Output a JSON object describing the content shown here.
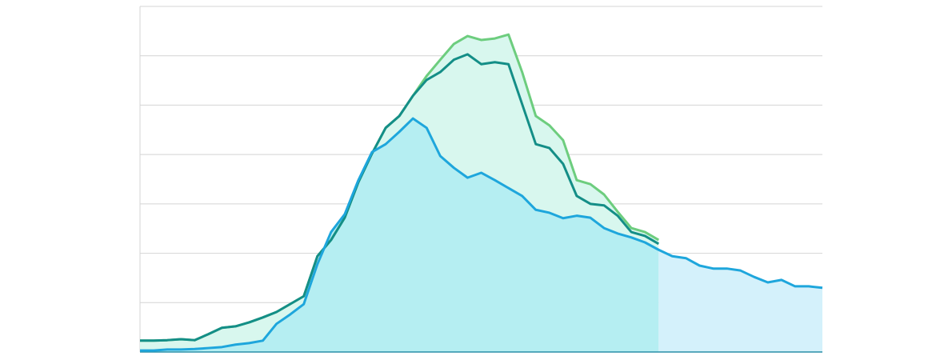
{
  "chart_data": {
    "type": "area",
    "x": [
      0,
      1,
      2,
      3,
      4,
      5,
      6,
      7,
      8,
      9,
      10,
      11,
      12,
      13,
      14,
      15,
      16,
      17,
      18,
      19,
      20,
      21,
      22,
      23,
      24,
      25,
      26,
      27,
      28,
      29,
      30,
      31,
      32,
      33,
      34,
      35,
      36,
      37,
      38,
      39,
      40,
      41,
      42,
      43,
      44,
      45,
      46,
      47,
      48,
      49,
      50
    ],
    "xlim": [
      0,
      50
    ],
    "ylim": [
      0,
      7
    ],
    "yticks": [
      0,
      1,
      2,
      3,
      4,
      5,
      6,
      7
    ],
    "grid": true,
    "series": [
      {
        "color": "#6dcd7e",
        "fill": "#d8f7ee",
        "values": [
          0.23,
          0.23,
          0.24,
          0.26,
          0.24,
          0.36,
          0.49,
          0.52,
          0.6,
          0.7,
          0.81,
          0.97,
          1.13,
          1.94,
          2.27,
          2.72,
          3.44,
          4.02,
          4.54,
          4.78,
          5.19,
          5.59,
          5.92,
          6.24,
          6.4,
          6.32,
          6.35,
          6.43,
          5.67,
          4.78,
          4.59,
          4.29,
          3.48,
          3.4,
          3.19,
          2.84,
          2.51,
          2.43,
          2.27,
          null,
          null,
          null,
          null,
          null,
          null,
          null,
          null,
          null,
          null,
          null,
          null
        ]
      },
      {
        "color": "#148e87",
        "values": [
          0.23,
          0.23,
          0.24,
          0.26,
          0.24,
          0.36,
          0.49,
          0.52,
          0.6,
          0.7,
          0.81,
          0.97,
          1.13,
          1.94,
          2.27,
          2.72,
          3.44,
          4.02,
          4.54,
          4.78,
          5.19,
          5.51,
          5.67,
          5.92,
          6.03,
          5.83,
          5.87,
          5.83,
          5.02,
          4.21,
          4.13,
          3.81,
          3.16,
          3.0,
          2.97,
          2.76,
          2.43,
          2.35,
          2.19,
          null,
          null,
          null,
          null,
          null,
          null,
          null,
          null,
          null,
          null,
          null,
          null
        ]
      },
      {
        "color": "#1ea6dc",
        "fill": "#b5eef2",
        "fill_after": "#d4f1fb",
        "values": [
          0.03,
          0.03,
          0.05,
          0.05,
          0.06,
          0.08,
          0.1,
          0.15,
          0.18,
          0.23,
          0.57,
          0.76,
          0.97,
          1.78,
          2.43,
          2.79,
          3.48,
          4.05,
          4.21,
          4.46,
          4.73,
          4.54,
          3.97,
          3.73,
          3.53,
          3.63,
          3.48,
          3.32,
          3.16,
          2.88,
          2.82,
          2.71,
          2.76,
          2.72,
          2.51,
          2.4,
          2.32,
          2.22,
          2.07,
          1.94,
          1.9,
          1.75,
          1.69,
          1.69,
          1.65,
          1.52,
          1.41,
          1.46,
          1.33,
          1.33,
          1.3
        ]
      }
    ]
  }
}
